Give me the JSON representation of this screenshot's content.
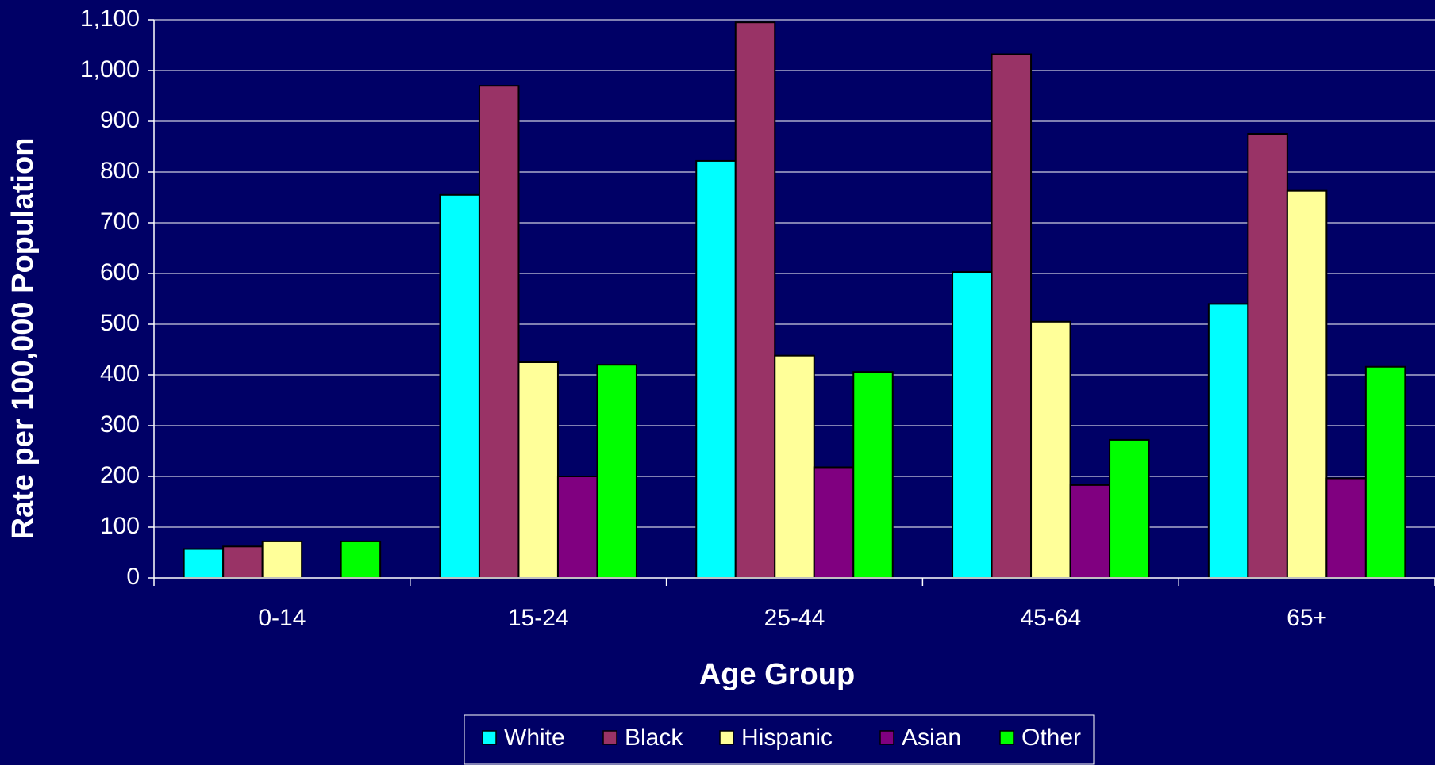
{
  "chart_data": {
    "type": "bar",
    "x_label": "Age Group",
    "y_label": "Rate per 100,000 Population",
    "categories": [
      "0-14",
      "15-24",
      "25-44",
      "45-64",
      "65+"
    ],
    "series": [
      {
        "name": "White",
        "color": "#00ffff",
        "values": [
          57,
          755,
          822,
          603,
          540
        ]
      },
      {
        "name": "Black",
        "color": "#993366",
        "values": [
          62,
          970,
          1095,
          1032,
          875
        ]
      },
      {
        "name": "Hispanic",
        "color": "#ffff99",
        "values": [
          72,
          425,
          438,
          505,
          763
        ]
      },
      {
        "name": "Asian",
        "color": "#800080",
        "values": [
          null,
          200,
          218,
          183,
          196
        ]
      },
      {
        "name": "Other",
        "color": "#00ff00",
        "values": [
          72,
          420,
          406,
          272,
          416
        ]
      }
    ],
    "ylim": [
      0,
      1100
    ],
    "yticks": [
      0,
      100,
      200,
      300,
      400,
      500,
      600,
      700,
      800,
      900,
      {
        "value": 1000,
        "label": "1,000"
      },
      {
        "value": 1100,
        "label": "1,100"
      }
    ],
    "grid": true,
    "legend": "bottom"
  }
}
